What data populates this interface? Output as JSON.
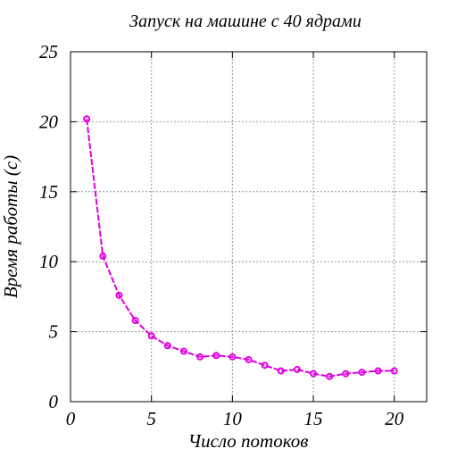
{
  "chart_data": {
    "type": "line",
    "title": "Запуск на машине с 40 ядрами",
    "xlabel": "Число потоков",
    "ylabel": "Время работы (с)",
    "xlim": [
      0,
      22
    ],
    "ylim": [
      0,
      25
    ],
    "xticks": [
      0,
      5,
      10,
      15,
      20
    ],
    "yticks": [
      0,
      5,
      10,
      15,
      20,
      25
    ],
    "grid": true,
    "series": [
      {
        "color": "#e000e0",
        "x": [
          1,
          2,
          3,
          4,
          5,
          6,
          7,
          8,
          9,
          10,
          11,
          12,
          13,
          14,
          15,
          16,
          17,
          18,
          19,
          20
        ],
        "y": [
          20.2,
          10.4,
          7.6,
          5.8,
          4.7,
          4.0,
          3.6,
          3.2,
          3.3,
          3.2,
          3.0,
          2.6,
          2.2,
          2.3,
          2.0,
          1.8,
          2.0,
          2.1,
          2.2,
          2.2
        ]
      }
    ]
  }
}
